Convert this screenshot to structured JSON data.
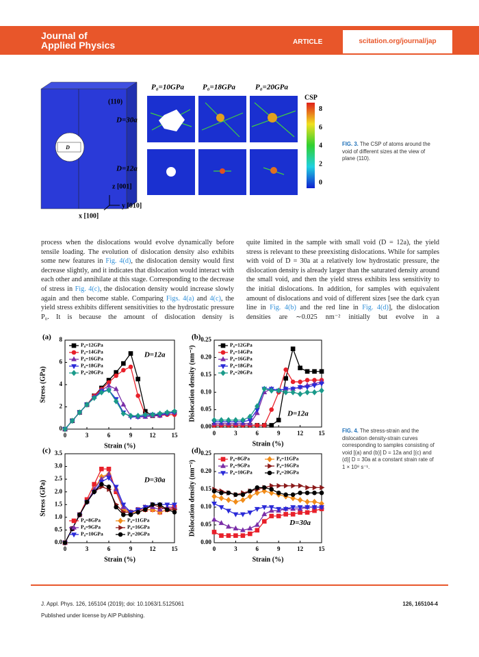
{
  "header": {
    "journal": [
      "Journal of",
      "Applied Physics"
    ],
    "section": "ARTICLE",
    "url": "scitation.org/journal/jap"
  },
  "figure3": {
    "pressures": [
      "P₀=10GPa",
      "P₀=18GPa",
      "P₀=20GPa"
    ],
    "rows": [
      "D=30a",
      "D=12a"
    ],
    "plane": "(110)",
    "void": "D",
    "axes": [
      "z [001]",
      "y [010]",
      "x [100]"
    ],
    "colorbar_title": "CSP",
    "colorbar_ticks": [
      8,
      6,
      4,
      2,
      0
    ],
    "caption_label": "FIG. 3.",
    "caption": "The CSP of atoms around the void of different sizes at the view of plane (110)."
  },
  "body": {
    "columns": [
      [
        {
          "text": "process when the dislocations would evolve dynamically before tensile loading. The evolution of dislocation density also exhibits some new features in "
        },
        {
          "link": "Fig. 4(d)"
        },
        {
          "text": ", the dislocation density would first decrease slightly, and it indicates that dislocation would interact with each other and annihilate at this stage. Corresponding to the decrease of stress in "
        },
        {
          "link": "Fig. 4(c)"
        },
        {
          "text": ", the dislocation density would increase slowly again and then become stable. Comparing "
        },
        {
          "link": "Figs. 4(a)"
        },
        {
          "text": " and "
        },
        {
          "link": "4(c)"
        },
        {
          "text": ", the yield stress exhibits different sensitivities to the hydrostatic pressure P₀. It is because the amount of dislocation density is"
        }
      ],
      [
        {
          "text": "quite limited in the sample with small void (D = 12a), the yield stress is relevant to these preexisting dislocations. While for samples with void of D = 30a at a relatively low hydrostatic pressure, the dislocation density is already larger than the saturated density around the small void, and then the yield stress exhibits less sensitivity to the initial dislocations. In addition, for samples with equivalent amount of dislocations and void of different sizes [see the dark cyan line in "
        },
        {
          "link": "Fig. 4(b)"
        },
        {
          "text": " and the red line in "
        },
        {
          "link": "Fig. 4(d)"
        },
        {
          "text": "], the dislocation densities are ∼0.025 nm⁻² initially but evolve in a"
        }
      ]
    ]
  },
  "figure4": {
    "caption_label": "FIG. 4.",
    "caption": "The stress-strain and the dislocation density-strain curves corresponding to samples consisting of void [(a) and (b)] D = 12a and [(c) and (d)] D = 30a at a constant strain rate of 1 × 10⁸ s⁻¹."
  },
  "chart_data": [
    {
      "type": "line",
      "panel": "(a)",
      "annotation": "D=12a",
      "x_label": "Strain (%)",
      "y_label": "Stress (GPa)",
      "legend": "upper left",
      "legend_columns": 1,
      "x": [
        0,
        1,
        2,
        3,
        4,
        5,
        6,
        7,
        8,
        9,
        10,
        11,
        12,
        13,
        14,
        15
      ],
      "xlim": [
        0,
        15
      ],
      "xticks": [
        0,
        3,
        6,
        9,
        12,
        15
      ],
      "ylim": [
        0,
        8
      ],
      "yticks": [
        0,
        2,
        4,
        6,
        8
      ],
      "series": [
        {
          "name": "P₀=12GPa",
          "color": "#000000",
          "marker": "square",
          "values": [
            0,
            0.75,
            1.5,
            2.2,
            3.0,
            3.7,
            4.4,
            5.1,
            5.9,
            6.8,
            4.5,
            1.6,
            1.2,
            1.3,
            1.4,
            1.5
          ]
        },
        {
          "name": "P₀=14GPa",
          "color": "#e8202a",
          "marker": "circle",
          "values": [
            0,
            0.75,
            1.5,
            2.2,
            3.0,
            3.6,
            4.2,
            4.8,
            5.3,
            5.6,
            3.0,
            1.3,
            1.2,
            1.2,
            1.3,
            1.3
          ]
        },
        {
          "name": "P₀=16GPa",
          "color": "#7b2fa8",
          "marker": "triangle-up",
          "values": [
            0,
            0.75,
            1.5,
            2.2,
            2.9,
            3.5,
            3.9,
            3.6,
            2.2,
            1.2,
            1.1,
            1.1,
            1.2,
            1.2,
            1.4,
            1.5
          ]
        },
        {
          "name": "P₀=18GPa",
          "color": "#2a2ad8",
          "marker": "triangle-down",
          "values": [
            0,
            0.75,
            1.5,
            2.2,
            2.8,
            3.4,
            3.5,
            2.7,
            1.5,
            1.1,
            1.1,
            1.2,
            1.3,
            1.3,
            1.4,
            1.5
          ]
        },
        {
          "name": "P₀=20GPa",
          "color": "#1a9a8a",
          "marker": "diamond",
          "values": [
            0,
            0.75,
            1.5,
            2.2,
            2.8,
            3.3,
            3.5,
            2.5,
            1.4,
            1.2,
            1.2,
            1.3,
            1.3,
            1.4,
            1.5,
            1.6
          ]
        }
      ]
    },
    {
      "type": "line",
      "panel": "(b)",
      "annotation": "D=12a",
      "x_label": "Strain (%)",
      "y_label": "Dislocation density (nm⁻²)",
      "legend": "upper left",
      "legend_columns": 1,
      "x": [
        0,
        1,
        2,
        3,
        4,
        5,
        6,
        7,
        8,
        9,
        10,
        11,
        12,
        13,
        14,
        15
      ],
      "xlim": [
        0,
        15
      ],
      "xticks": [
        0,
        3,
        6,
        9,
        12,
        15
      ],
      "ylim": [
        0,
        0.25
      ],
      "yticks": [
        {
          "value": 0,
          "label": "0.00"
        },
        {
          "value": 0.05,
          "label": "0.05"
        },
        {
          "value": 0.1,
          "label": "0.10"
        },
        {
          "value": 0.15,
          "label": "0.15"
        },
        {
          "value": 0.2,
          "label": "0.20"
        },
        {
          "value": 0.25,
          "label": "0.25"
        }
      ],
      "series": [
        {
          "name": "P₀=12GPa",
          "color": "#000000",
          "marker": "square",
          "values": [
            0.005,
            0.005,
            0.005,
            0.005,
            0.005,
            0.005,
            0.005,
            0.005,
            0.005,
            0.02,
            0.14,
            0.225,
            0.17,
            0.16,
            0.16,
            0.16
          ]
        },
        {
          "name": "P₀=14GPa",
          "color": "#e8202a",
          "marker": "circle",
          "values": [
            0.005,
            0.005,
            0.005,
            0.005,
            0.005,
            0.005,
            0.005,
            0.005,
            0.05,
            0.1,
            0.165,
            0.13,
            0.13,
            0.135,
            0.135,
            0.135
          ]
        },
        {
          "name": "P₀=16GPa",
          "color": "#7b2fa8",
          "marker": "triangle-up",
          "values": [
            0.01,
            0.01,
            0.01,
            0.01,
            0.01,
            0.01,
            0.04,
            0.1,
            0.11,
            0.105,
            0.11,
            0.11,
            0.115,
            0.12,
            0.125,
            0.13
          ]
        },
        {
          "name": "P₀=18GPa",
          "color": "#2a2ad8",
          "marker": "triangle-down",
          "values": [
            0.015,
            0.015,
            0.015,
            0.015,
            0.015,
            0.02,
            0.05,
            0.11,
            0.11,
            0.105,
            0.11,
            0.11,
            0.115,
            0.115,
            0.12,
            0.125
          ]
        },
        {
          "name": "P₀=20GPa",
          "color": "#1a9a8a",
          "marker": "diamond",
          "values": [
            0.02,
            0.02,
            0.02,
            0.02,
            0.02,
            0.03,
            0.06,
            0.11,
            0.105,
            0.105,
            0.1,
            0.1,
            0.095,
            0.1,
            0.1,
            0.105
          ]
        }
      ]
    },
    {
      "type": "line",
      "panel": "(c)",
      "annotation": "D=30a",
      "x_label": "Strain (%)",
      "y_label": "Stress (GPa)",
      "legend": "lower left",
      "legend_columns": 2,
      "x": [
        0,
        1,
        2,
        3,
        4,
        5,
        6,
        7,
        8,
        9,
        10,
        11,
        12,
        13,
        14,
        15
      ],
      "xlim": [
        0,
        15
      ],
      "xticks": [
        0,
        3,
        6,
        9,
        12,
        15
      ],
      "ylim": [
        0,
        3.5
      ],
      "yticks": [
        {
          "value": 0,
          "label": "0.0"
        },
        {
          "value": 0.5,
          "label": "0.5"
        },
        {
          "value": 1,
          "label": "1.0"
        },
        {
          "value": 1.5,
          "label": "1.5"
        },
        {
          "value": 2,
          "label": "2.0"
        },
        {
          "value": 2.5,
          "label": "2.5"
        },
        {
          "value": 3,
          "label": "3.0"
        },
        {
          "value": 3.5,
          "label": "3.5"
        }
      ],
      "series": [
        {
          "name": "P₀=8GPa",
          "color": "#e8202a",
          "marker": "square",
          "values": [
            0,
            0.55,
            1.1,
            1.7,
            2.3,
            2.9,
            2.9,
            2.0,
            1.3,
            1.2,
            1.3,
            1.3,
            1.3,
            1.2,
            1.3,
            1.4
          ]
        },
        {
          "name": "P₀=11GPa",
          "color": "#f08c1a",
          "marker": "diamond",
          "values": [
            0,
            0.55,
            1.1,
            1.6,
            2.1,
            2.6,
            2.7,
            2.1,
            1.3,
            1.2,
            1.2,
            1.3,
            1.3,
            1.2,
            1.3,
            1.3
          ]
        },
        {
          "name": "P₀=9GPa",
          "color": "#7b2fa8",
          "marker": "triangle-up",
          "values": [
            0,
            0.55,
            1.1,
            1.6,
            2.1,
            2.5,
            2.7,
            2.1,
            1.4,
            1.2,
            1.3,
            1.4,
            1.4,
            1.3,
            1.4,
            1.4
          ]
        },
        {
          "name": "P₀=16GPa",
          "color": "#8b1a1a",
          "marker": "triangle-right",
          "values": [
            0,
            0.55,
            1.1,
            1.6,
            2.0,
            2.2,
            2.1,
            1.5,
            1.2,
            1.2,
            1.3,
            1.4,
            1.5,
            1.4,
            1.3,
            1.3
          ]
        },
        {
          "name": "P₀=10GPa",
          "color": "#2a2ad8",
          "marker": "triangle-down",
          "values": [
            0,
            0.55,
            1.1,
            1.6,
            2.0,
            2.4,
            2.55,
            2.2,
            1.5,
            1.2,
            1.3,
            1.4,
            1.5,
            1.5,
            1.5,
            1.5
          ]
        },
        {
          "name": "P₀=20GPa",
          "color": "#000000",
          "marker": "circle",
          "values": [
            0,
            0.55,
            1.1,
            1.6,
            2.0,
            2.3,
            2.2,
            1.4,
            1.1,
            1.1,
            1.2,
            1.3,
            1.5,
            1.5,
            1.3,
            1.2
          ]
        }
      ]
    },
    {
      "type": "line",
      "panel": "(d)",
      "annotation": "D=30a",
      "x_label": "Strain (%)",
      "y_label": "Dislocation density (nm⁻²)",
      "legend": "upper left",
      "legend_columns": 2,
      "x": [
        0,
        1,
        2,
        3,
        4,
        5,
        6,
        7,
        8,
        9,
        10,
        11,
        12,
        13,
        14,
        15
      ],
      "xlim": [
        0,
        15
      ],
      "xticks": [
        0,
        3,
        6,
        9,
        12,
        15
      ],
      "ylim": [
        0,
        0.25
      ],
      "yticks": [
        {
          "value": 0,
          "label": "0.00"
        },
        {
          "value": 0.05,
          "label": "0.05"
        },
        {
          "value": 0.1,
          "label": "0.10"
        },
        {
          "value": 0.15,
          "label": "0.15"
        },
        {
          "value": 0.2,
          "label": "0.20"
        },
        {
          "value": 0.25,
          "label": "0.25"
        }
      ],
      "series": [
        {
          "name": "P₀=8GPa",
          "color": "#e8202a",
          "marker": "square",
          "values": [
            0.03,
            0.02,
            0.02,
            0.02,
            0.02,
            0.025,
            0.035,
            0.06,
            0.075,
            0.075,
            0.08,
            0.08,
            0.085,
            0.085,
            0.09,
            0.095
          ]
        },
        {
          "name": "P₀=11GPa",
          "color": "#f08c1a",
          "marker": "diamond",
          "values": [
            0.13,
            0.125,
            0.12,
            0.115,
            0.12,
            0.13,
            0.14,
            0.145,
            0.14,
            0.135,
            0.13,
            0.125,
            0.12,
            0.115,
            0.115,
            0.11
          ]
        },
        {
          "name": "P₀=9GPa",
          "color": "#7b2fa8",
          "marker": "triangle-up",
          "values": [
            0.065,
            0.055,
            0.045,
            0.04,
            0.035,
            0.04,
            0.05,
            0.08,
            0.09,
            0.09,
            0.095,
            0.095,
            0.095,
            0.1,
            0.1,
            0.1
          ]
        },
        {
          "name": "P₀=16GPa",
          "color": "#8b1a1a",
          "marker": "triangle-right",
          "values": [
            0.15,
            0.145,
            0.14,
            0.135,
            0.14,
            0.145,
            0.15,
            0.155,
            0.16,
            0.16,
            0.16,
            0.16,
            0.16,
            0.155,
            0.155,
            0.155
          ]
        },
        {
          "name": "P₀=10GPa",
          "color": "#2a2ad8",
          "marker": "triangle-down",
          "values": [
            0.11,
            0.1,
            0.09,
            0.08,
            0.08,
            0.085,
            0.095,
            0.1,
            0.1,
            0.095,
            0.095,
            0.1,
            0.1,
            0.1,
            0.1,
            0.1
          ]
        },
        {
          "name": "P₀=20GPa",
          "color": "#000000",
          "marker": "circle",
          "values": [
            0.145,
            0.14,
            0.14,
            0.135,
            0.135,
            0.145,
            0.155,
            0.155,
            0.15,
            0.14,
            0.135,
            0.135,
            0.14,
            0.14,
            0.14,
            0.14
          ]
        }
      ]
    }
  ],
  "footer": {
    "citation": "J. Appl. Phys. 126, 165104 (2019); doi: 10.1063/1.5125061",
    "page": "126, 165104-4",
    "license": "Published under license by AIP Publishing."
  }
}
